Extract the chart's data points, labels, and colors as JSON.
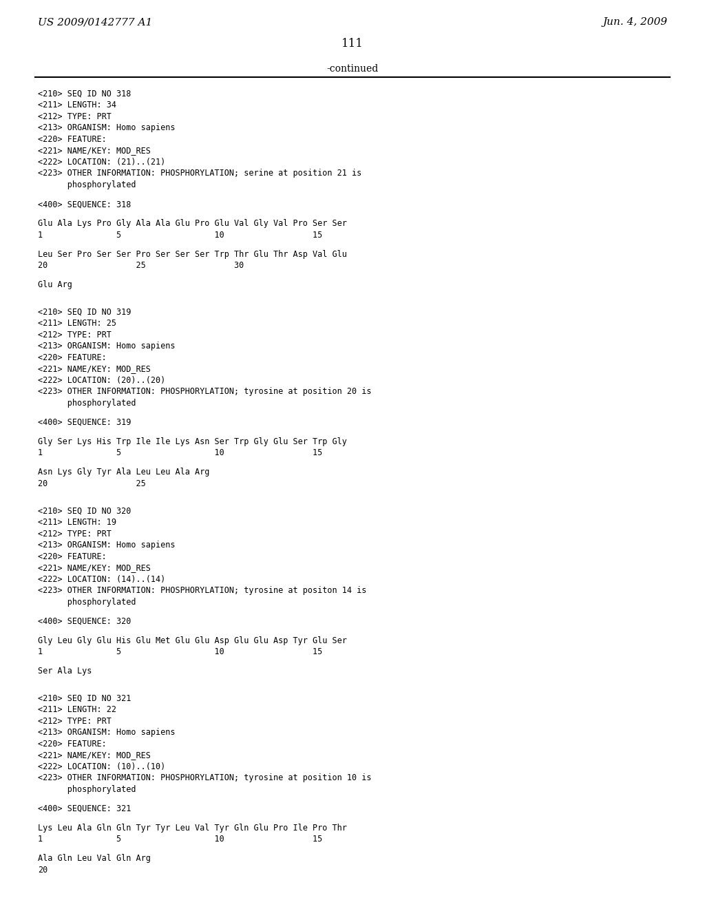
{
  "page_number": "111",
  "header_left": "US 2009/0142777 A1",
  "header_right": "Jun. 4, 2009",
  "continued_label": "-continued",
  "background_color": "#ffffff",
  "text_color": "#000000",
  "mono_font": "DejaVu Sans Mono",
  "serif_font": "DejaVu Serif",
  "content": [
    "<210> SEQ ID NO 318",
    "<211> LENGTH: 34",
    "<212> TYPE: PRT",
    "<213> ORGANISM: Homo sapiens",
    "<220> FEATURE:",
    "<221> NAME/KEY: MOD_RES",
    "<222> LOCATION: (21)..(21)",
    "<223> OTHER INFORMATION: PHOSPHORYLATION; serine at position 21 is",
    "      phosphorylated",
    "",
    "<400> SEQUENCE: 318",
    "",
    "Glu Ala Lys Pro Gly Ala Ala Glu Pro Glu Val Gly Val Pro Ser Ser",
    "1               5                   10                  15",
    "",
    "Leu Ser Pro Ser Ser Pro Ser Ser Ser Trp Thr Glu Thr Asp Val Glu",
    "20                  25                  30",
    "",
    "Glu Arg",
    "",
    "",
    "<210> SEQ ID NO 319",
    "<211> LENGTH: 25",
    "<212> TYPE: PRT",
    "<213> ORGANISM: Homo sapiens",
    "<220> FEATURE:",
    "<221> NAME/KEY: MOD_RES",
    "<222> LOCATION: (20)..(20)",
    "<223> OTHER INFORMATION: PHOSPHORYLATION; tyrosine at position 20 is",
    "      phosphorylated",
    "",
    "<400> SEQUENCE: 319",
    "",
    "Gly Ser Lys His Trp Ile Ile Lys Asn Ser Trp Gly Glu Ser Trp Gly",
    "1               5                   10                  15",
    "",
    "Asn Lys Gly Tyr Ala Leu Leu Ala Arg",
    "20                  25",
    "",
    "",
    "<210> SEQ ID NO 320",
    "<211> LENGTH: 19",
    "<212> TYPE: PRT",
    "<213> ORGANISM: Homo sapiens",
    "<220> FEATURE:",
    "<221> NAME/KEY: MOD_RES",
    "<222> LOCATION: (14)..(14)",
    "<223> OTHER INFORMATION: PHOSPHORYLATION; tyrosine at positon 14 is",
    "      phosphorylated",
    "",
    "<400> SEQUENCE: 320",
    "",
    "Gly Leu Gly Glu His Glu Met Glu Glu Asp Glu Glu Asp Tyr Glu Ser",
    "1               5                   10                  15",
    "",
    "Ser Ala Lys",
    "",
    "",
    "<210> SEQ ID NO 321",
    "<211> LENGTH: 22",
    "<212> TYPE: PRT",
    "<213> ORGANISM: Homo sapiens",
    "<220> FEATURE:",
    "<221> NAME/KEY: MOD_RES",
    "<222> LOCATION: (10)..(10)",
    "<223> OTHER INFORMATION: PHOSPHORYLATION; tyrosine at position 10 is",
    "      phosphorylated",
    "",
    "<400> SEQUENCE: 321",
    "",
    "Lys Leu Ala Gln Gln Tyr Tyr Leu Val Tyr Gln Glu Pro Ile Pro Thr",
    "1               5                   10                  15",
    "",
    "Ala Gln Leu Val Gln Arg",
    "20"
  ]
}
